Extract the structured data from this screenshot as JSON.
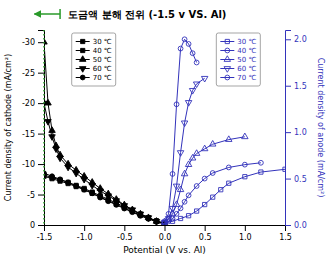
{
  "chart_data": {
    "type": "line",
    "title": "도금액 분해 전위 (-1.5 v VS. Al)",
    "xlabel": "Potential (V vs. Al)",
    "ylabel": "Current density of cathode  (mA/cm²)",
    "y2label": "Current density of anode  (mA/cm²)",
    "xlim": [
      -1.5,
      1.5
    ],
    "ylim": [
      0,
      -32
    ],
    "y2lim": [
      0,
      2.1
    ],
    "xticks": [
      -1.5,
      {
        "value": -1.0,
        "label": "-1.0"
      },
      -0.5,
      {
        "value": 0.0,
        "label": "0.0"
      },
      0.5,
      {
        "value": 1.0,
        "label": "1.0"
      },
      1.5
    ],
    "yticks": [
      0,
      -5,
      -10,
      -15,
      -20,
      -25,
      -30
    ],
    "y2ticks": [
      {
        "value": 0.0,
        "label": "0.0"
      },
      0.5,
      {
        "value": 1.0,
        "label": "1.0"
      },
      1.5,
      {
        "value": 2.0,
        "label": "2.0"
      }
    ],
    "grid": false,
    "legend": "top",
    "annotations": [
      {
        "type": "vline",
        "x": -1.5,
        "color": "#2a9a2a",
        "line_style": "dotted"
      },
      {
        "type": "arrow",
        "x_from": -1.3,
        "x_to": -1.62,
        "color": "#2a9a2a"
      }
    ],
    "series": [
      {
        "name": "30 ℃",
        "color": "black",
        "marker": "filled-square",
        "x": [
          -1.5,
          -1.4,
          -1.3,
          -1.2,
          -1.1,
          -1.0,
          -0.9,
          -0.8,
          -0.7,
          -0.6,
          -0.5,
          -0.4,
          -0.3,
          -0.2,
          -0.1,
          0.0
        ],
        "values": [
          -8.0,
          -7.6,
          -7.2,
          -6.8,
          -6.3,
          -5.8,
          -5.2,
          -4.6,
          -4.0,
          -3.4,
          -2.8,
          -2.2,
          -1.6,
          -1.1,
          -0.6,
          -0.2
        ]
      },
      {
        "name": "40 ℃",
        "color": "black",
        "marker": "filled-square",
        "x": [
          -1.5,
          -1.4,
          -1.3,
          -1.2,
          -1.1,
          -1.0,
          -0.9,
          -0.8,
          -0.7,
          -0.6,
          -0.5,
          -0.4,
          -0.3,
          -0.2,
          -0.1,
          0.0
        ],
        "values": [
          -8.2,
          -7.8,
          -7.4,
          -7.0,
          -6.5,
          -6.0,
          -5.4,
          -4.8,
          -4.2,
          -3.6,
          -3.0,
          -2.4,
          -1.8,
          -1.2,
          -0.7,
          -0.3
        ]
      },
      {
        "name": "50 ℃",
        "color": "black",
        "marker": "filled-triangle-up",
        "x": [
          -1.5,
          -1.45,
          -1.4,
          -1.35,
          -1.3,
          -1.2,
          -1.1,
          -1.0,
          -0.9,
          -0.8,
          -0.7,
          -0.6,
          -0.5,
          -0.4,
          -0.3,
          -0.2,
          -0.1,
          0.0
        ],
        "values": [
          -30.0,
          -20.0,
          -15.5,
          -13.0,
          -11.5,
          -10.0,
          -9.0,
          -8.0,
          -7.0,
          -6.0,
          -5.1,
          -4.2,
          -3.3,
          -2.5,
          -1.8,
          -1.2,
          -0.6,
          -0.2
        ]
      },
      {
        "name": "60 ℃",
        "color": "black",
        "marker": "filled-triangle-down",
        "x": [
          -1.5,
          -1.45,
          -1.4,
          -1.35,
          -1.3,
          -1.2,
          -1.1,
          -1.0,
          -0.9,
          -0.8,
          -0.7,
          -0.6,
          -0.5,
          -0.4,
          -0.3,
          -0.2,
          -0.1,
          0.0
        ],
        "values": [
          -20.0,
          -17.0,
          -14.5,
          -12.5,
          -11.0,
          -9.5,
          -8.5,
          -7.5,
          -6.5,
          -5.6,
          -4.8,
          -4.0,
          -3.2,
          -2.5,
          -1.8,
          -1.2,
          -0.6,
          -0.2
        ]
      },
      {
        "name": "70 ℃",
        "color": "black",
        "marker": "filled-circle",
        "x": [
          -1.5,
          -1.4,
          -1.3,
          -1.2,
          -1.1,
          -1.0,
          -0.9,
          -0.8,
          -0.7,
          -0.6,
          -0.5,
          -0.4,
          -0.3,
          -0.2,
          -0.1,
          0.0
        ],
        "values": [
          -8.5,
          -8.0,
          -7.5,
          -7.0,
          -6.4,
          -5.8,
          -5.2,
          -4.5,
          -3.9,
          -3.3,
          -2.7,
          -2.1,
          -1.5,
          -1.0,
          -0.5,
          -0.2
        ]
      },
      {
        "name": "30 ℃",
        "color": "#3333bb",
        "marker": "open-square",
        "axis": "y2",
        "x": [
          0.0,
          0.1,
          0.2,
          0.3,
          0.4,
          0.5,
          0.6,
          0.7,
          0.8,
          1.0,
          1.2,
          1.5
        ],
        "values": [
          0.02,
          0.04,
          0.07,
          0.1,
          0.15,
          0.22,
          0.3,
          0.38,
          0.45,
          0.52,
          0.57,
          0.6
        ]
      },
      {
        "name": "40 ℃",
        "color": "#3333bb",
        "marker": "open-circle",
        "axis": "y2",
        "x": [
          0.0,
          0.05,
          0.1,
          0.15,
          0.2,
          0.25,
          0.3,
          0.4,
          0.5,
          0.6,
          0.8,
          1.0,
          1.2
        ],
        "values": [
          0.02,
          0.04,
          0.07,
          0.12,
          0.18,
          0.25,
          0.32,
          0.42,
          0.5,
          0.56,
          0.62,
          0.65,
          0.67
        ]
      },
      {
        "name": "50 ℃",
        "color": "#3333bb",
        "marker": "open-triangle-up",
        "axis": "y2",
        "x": [
          0.0,
          0.05,
          0.1,
          0.15,
          0.2,
          0.25,
          0.3,
          0.35,
          0.4,
          0.5,
          0.6,
          0.8,
          1.0
        ],
        "values": [
          0.03,
          0.06,
          0.12,
          0.22,
          0.38,
          0.55,
          0.65,
          0.72,
          0.77,
          0.82,
          0.87,
          0.92,
          0.95
        ]
      },
      {
        "name": "60 ℃",
        "color": "#3333bb",
        "marker": "open-triangle-down",
        "axis": "y2",
        "x": [
          0.0,
          0.05,
          0.1,
          0.15,
          0.2,
          0.25,
          0.3,
          0.35,
          0.4,
          0.5
        ],
        "values": [
          0.03,
          0.07,
          0.18,
          0.42,
          0.78,
          1.1,
          1.32,
          1.45,
          1.52,
          1.58
        ]
      },
      {
        "name": "70 ℃",
        "color": "#3333bb",
        "marker": "open-circle",
        "axis": "y2",
        "x": [
          0.0,
          0.05,
          0.1,
          0.15,
          0.2,
          0.25,
          0.3,
          0.35,
          0.4
        ],
        "values": [
          0.04,
          0.12,
          0.55,
          1.3,
          1.9,
          2.0,
          1.95,
          1.85,
          1.75
        ]
      }
    ]
  }
}
